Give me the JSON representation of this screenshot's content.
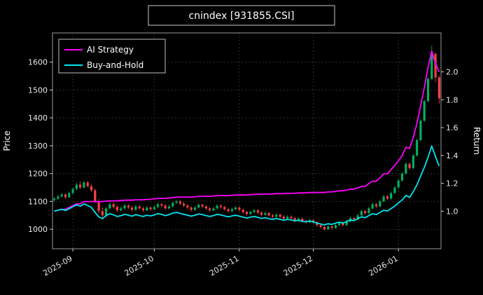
{
  "title": "cnindex [931855.CSI]",
  "legend": {
    "items": [
      {
        "label": "AI Strategy",
        "color": "#ff00ff"
      },
      {
        "label": "Buy-and-Hold",
        "color": "#00e5ee"
      }
    ]
  },
  "chart_data": {
    "type": "candlestick",
    "title": "cnindex [931855.CSI]",
    "background": "#000000",
    "grid": {
      "color": "#2e2e2e",
      "dash": "2,3"
    },
    "candle_colors": {
      "up": "#00b060",
      "down": "#ff4040"
    },
    "x_axis": {
      "tick_labels": [
        "2025-09",
        "2025-10",
        "2025-11",
        "2025-12",
        "2026-01"
      ],
      "tick_indices": [
        5,
        27,
        50,
        70,
        93
      ]
    },
    "left_axis": {
      "label": "Price",
      "ticks": [
        1000,
        1100,
        1200,
        1300,
        1400,
        1500,
        1600
      ],
      "range": [
        930,
        1705
      ]
    },
    "right_axis": {
      "label": "Return",
      "ticks": [
        1.0,
        1.2,
        1.4,
        1.6,
        1.8,
        2.0
      ],
      "align": {
        "price_at_1": 1065,
        "price_per_unit": 500
      }
    },
    "ohlc": [
      [
        1105,
        1116,
        1098,
        1110
      ],
      [
        1110,
        1124,
        1105,
        1118
      ],
      [
        1118,
        1132,
        1112,
        1125
      ],
      [
        1125,
        1130,
        1108,
        1115
      ],
      [
        1115,
        1136,
        1112,
        1130
      ],
      [
        1130,
        1150,
        1126,
        1145
      ],
      [
        1145,
        1168,
        1140,
        1160
      ],
      [
        1160,
        1172,
        1144,
        1150
      ],
      [
        1150,
        1175,
        1146,
        1168
      ],
      [
        1168,
        1174,
        1150,
        1155
      ],
      [
        1155,
        1162,
        1134,
        1140
      ],
      [
        1140,
        1146,
        1094,
        1100
      ],
      [
        1100,
        1108,
        1058,
        1065
      ],
      [
        1065,
        1078,
        1042,
        1050
      ],
      [
        1050,
        1080,
        1046,
        1075
      ],
      [
        1075,
        1096,
        1070,
        1090
      ],
      [
        1090,
        1097,
        1074,
        1080
      ],
      [
        1080,
        1086,
        1062,
        1068
      ],
      [
        1068,
        1082,
        1063,
        1075
      ],
      [
        1075,
        1091,
        1070,
        1085
      ],
      [
        1085,
        1090,
        1072,
        1078
      ],
      [
        1078,
        1084,
        1064,
        1070
      ],
      [
        1070,
        1088,
        1066,
        1082
      ],
      [
        1082,
        1088,
        1070,
        1075
      ],
      [
        1075,
        1081,
        1062,
        1068
      ],
      [
        1068,
        1084,
        1064,
        1078
      ],
      [
        1078,
        1083,
        1066,
        1072
      ],
      [
        1072,
        1086,
        1068,
        1080
      ],
      [
        1080,
        1096,
        1076,
        1090
      ],
      [
        1090,
        1095,
        1078,
        1085
      ],
      [
        1085,
        1090,
        1069,
        1075
      ],
      [
        1075,
        1088,
        1071,
        1082
      ],
      [
        1082,
        1100,
        1078,
        1095
      ],
      [
        1095,
        1107,
        1090,
        1100
      ],
      [
        1100,
        1105,
        1086,
        1092
      ],
      [
        1092,
        1098,
        1080,
        1085
      ],
      [
        1085,
        1090,
        1072,
        1078
      ],
      [
        1078,
        1083,
        1064,
        1070
      ],
      [
        1070,
        1084,
        1066,
        1078
      ],
      [
        1078,
        1093,
        1074,
        1088
      ],
      [
        1088,
        1093,
        1076,
        1082
      ],
      [
        1082,
        1087,
        1069,
        1075
      ],
      [
        1075,
        1080,
        1062,
        1068
      ],
      [
        1068,
        1081,
        1064,
        1075
      ],
      [
        1075,
        1090,
        1071,
        1085
      ],
      [
        1085,
        1090,
        1074,
        1080
      ],
      [
        1080,
        1085,
        1066,
        1072
      ],
      [
        1072,
        1077,
        1059,
        1065
      ],
      [
        1065,
        1078,
        1061,
        1072
      ],
      [
        1072,
        1084,
        1068,
        1078
      ],
      [
        1078,
        1083,
        1064,
        1070
      ],
      [
        1070,
        1075,
        1056,
        1062
      ],
      [
        1062,
        1067,
        1049,
        1055
      ],
      [
        1055,
        1068,
        1051,
        1062
      ],
      [
        1062,
        1074,
        1058,
        1068
      ],
      [
        1068,
        1073,
        1054,
        1060
      ],
      [
        1060,
        1065,
        1046,
        1052
      ],
      [
        1052,
        1064,
        1048,
        1058
      ],
      [
        1058,
        1063,
        1044,
        1050
      ],
      [
        1050,
        1055,
        1039,
        1045
      ],
      [
        1045,
        1058,
        1041,
        1052
      ],
      [
        1052,
        1057,
        1039,
        1045
      ],
      [
        1045,
        1050,
        1032,
        1038
      ],
      [
        1038,
        1051,
        1034,
        1045
      ],
      [
        1045,
        1050,
        1034,
        1040
      ],
      [
        1040,
        1045,
        1026,
        1032
      ],
      [
        1032,
        1044,
        1028,
        1038
      ],
      [
        1038,
        1043,
        1024,
        1030
      ],
      [
        1030,
        1035,
        1019,
        1025
      ],
      [
        1025,
        1038,
        1021,
        1032
      ],
      [
        1032,
        1037,
        1019,
        1025
      ],
      [
        1025,
        1030,
        1009,
        1015
      ],
      [
        1015,
        1020,
        1002,
        1008
      ],
      [
        1008,
        1013,
        995,
        1000
      ],
      [
        1000,
        1016,
        997,
        1010
      ],
      [
        1010,
        1015,
        999,
        1005
      ],
      [
        1005,
        1021,
        1001,
        1015
      ],
      [
        1015,
        1028,
        1011,
        1022
      ],
      [
        1022,
        1027,
        1009,
        1015
      ],
      [
        1015,
        1034,
        1012,
        1028
      ],
      [
        1028,
        1046,
        1024,
        1040
      ],
      [
        1040,
        1045,
        1029,
        1035
      ],
      [
        1035,
        1056,
        1031,
        1050
      ],
      [
        1050,
        1071,
        1046,
        1065
      ],
      [
        1065,
        1070,
        1052,
        1058
      ],
      [
        1058,
        1081,
        1054,
        1075
      ],
      [
        1075,
        1096,
        1071,
        1090
      ],
      [
        1090,
        1095,
        1076,
        1082
      ],
      [
        1082,
        1106,
        1078,
        1100
      ],
      [
        1100,
        1124,
        1096,
        1118
      ],
      [
        1118,
        1123,
        1104,
        1110
      ],
      [
        1110,
        1136,
        1106,
        1130
      ],
      [
        1130,
        1156,
        1126,
        1150
      ],
      [
        1150,
        1181,
        1146,
        1175
      ],
      [
        1175,
        1206,
        1171,
        1200
      ],
      [
        1200,
        1241,
        1196,
        1235
      ],
      [
        1235,
        1240,
        1212,
        1220
      ],
      [
        1220,
        1271,
        1216,
        1265
      ],
      [
        1265,
        1326,
        1261,
        1320
      ],
      [
        1320,
        1396,
        1316,
        1390
      ],
      [
        1390,
        1466,
        1386,
        1460
      ],
      [
        1460,
        1546,
        1456,
        1540
      ],
      [
        1540,
        1660,
        1536,
        1630
      ],
      [
        1630,
        1635,
        1528,
        1545
      ],
      [
        1545,
        1552,
        1452,
        1470
      ]
    ],
    "series": [
      {
        "name": "AI Strategy",
        "color": "#ff00ff",
        "axis": "return",
        "values": [
          1.0,
          1.007,
          1.013,
          1.013,
          1.027,
          1.04,
          1.053,
          1.053,
          1.069,
          1.069,
          1.069,
          1.069,
          1.069,
          1.069,
          1.072,
          1.074,
          1.074,
          1.074,
          1.076,
          1.079,
          1.079,
          1.079,
          1.082,
          1.082,
          1.082,
          1.085,
          1.085,
          1.088,
          1.092,
          1.092,
          1.092,
          1.094,
          1.098,
          1.101,
          1.101,
          1.101,
          1.101,
          1.101,
          1.103,
          1.107,
          1.107,
          1.107,
          1.107,
          1.109,
          1.112,
          1.112,
          1.112,
          1.112,
          1.114,
          1.116,
          1.116,
          1.116,
          1.116,
          1.118,
          1.121,
          1.121,
          1.121,
          1.123,
          1.123,
          1.123,
          1.126,
          1.126,
          1.126,
          1.128,
          1.128,
          1.128,
          1.131,
          1.131,
          1.131,
          1.134,
          1.134,
          1.134,
          1.134,
          1.134,
          1.138,
          1.138,
          1.142,
          1.146,
          1.146,
          1.151,
          1.158,
          1.158,
          1.167,
          1.178,
          1.178,
          1.198,
          1.215,
          1.215,
          1.24,
          1.268,
          1.268,
          1.298,
          1.33,
          1.362,
          1.4,
          1.458,
          1.452,
          1.528,
          1.63,
          1.757,
          1.888,
          2.03,
          2.15,
          2.06,
          2.0
        ]
      },
      {
        "name": "Buy-and-Hold",
        "color": "#00e5ee",
        "axis": "return",
        "values": [
          1.0,
          1.007,
          1.014,
          1.005,
          1.018,
          1.032,
          1.045,
          1.036,
          1.052,
          1.041,
          1.027,
          0.991,
          0.959,
          0.946,
          0.968,
          0.982,
          0.973,
          0.962,
          0.968,
          0.977,
          0.971,
          0.964,
          0.975,
          0.968,
          0.962,
          0.971,
          0.966,
          0.973,
          0.982,
          0.977,
          0.968,
          0.975,
          0.986,
          0.991,
          0.984,
          0.977,
          0.971,
          0.964,
          0.971,
          0.98,
          0.975,
          0.968,
          0.962,
          0.968,
          0.977,
          0.973,
          0.966,
          0.959,
          0.966,
          0.971,
          0.964,
          0.957,
          0.95,
          0.957,
          0.962,
          0.955,
          0.948,
          0.953,
          0.946,
          0.941,
          0.948,
          0.941,
          0.935,
          0.941,
          0.937,
          0.93,
          0.935,
          0.928,
          0.923,
          0.93,
          0.923,
          0.914,
          0.908,
          0.901,
          0.91,
          0.905,
          0.914,
          0.921,
          0.914,
          0.926,
          0.937,
          0.932,
          0.946,
          0.959,
          0.953,
          0.968,
          0.982,
          0.975,
          0.991,
          1.007,
          1.0,
          1.018,
          1.036,
          1.059,
          1.081,
          1.113,
          1.099,
          1.14,
          1.189,
          1.252,
          1.315,
          1.387,
          1.468,
          1.392,
          1.324
        ]
      }
    ]
  }
}
